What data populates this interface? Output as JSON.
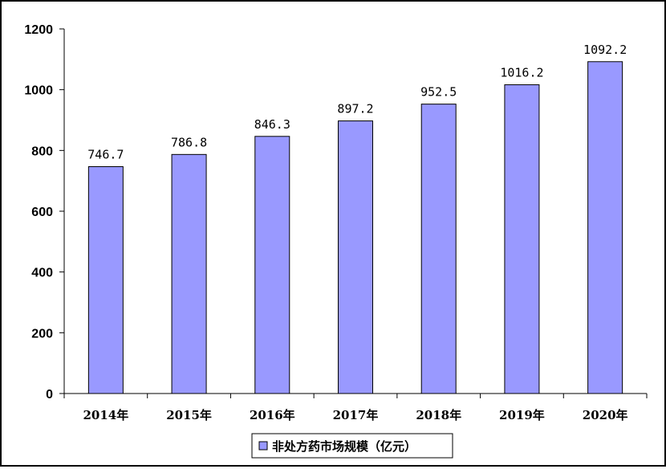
{
  "chart_data": {
    "type": "bar",
    "categories": [
      "2014年",
      "2015年",
      "2016年",
      "2017年",
      "2018年",
      "2019年",
      "2020年"
    ],
    "series": [
      {
        "name": "非处方药市场规模（亿元）",
        "values": [
          746.7,
          786.8,
          846.3,
          897.2,
          952.5,
          1016.2,
          1092.2
        ],
        "labels": [
          "746.7",
          "786.8",
          "846.3",
          "897.2",
          "952.5",
          "1016.2",
          "1092.2"
        ]
      }
    ],
    "ylim": [
      0,
      1200
    ],
    "yticks": [
      0,
      200,
      400,
      600,
      800,
      1000,
      1200
    ],
    "title": "",
    "xlabel": "",
    "ylabel": "",
    "grid": false,
    "legend_position": "bottom",
    "colors": {
      "bar_fill": "#9999FF",
      "bar_stroke": "#000000",
      "axis": "#000000"
    }
  }
}
